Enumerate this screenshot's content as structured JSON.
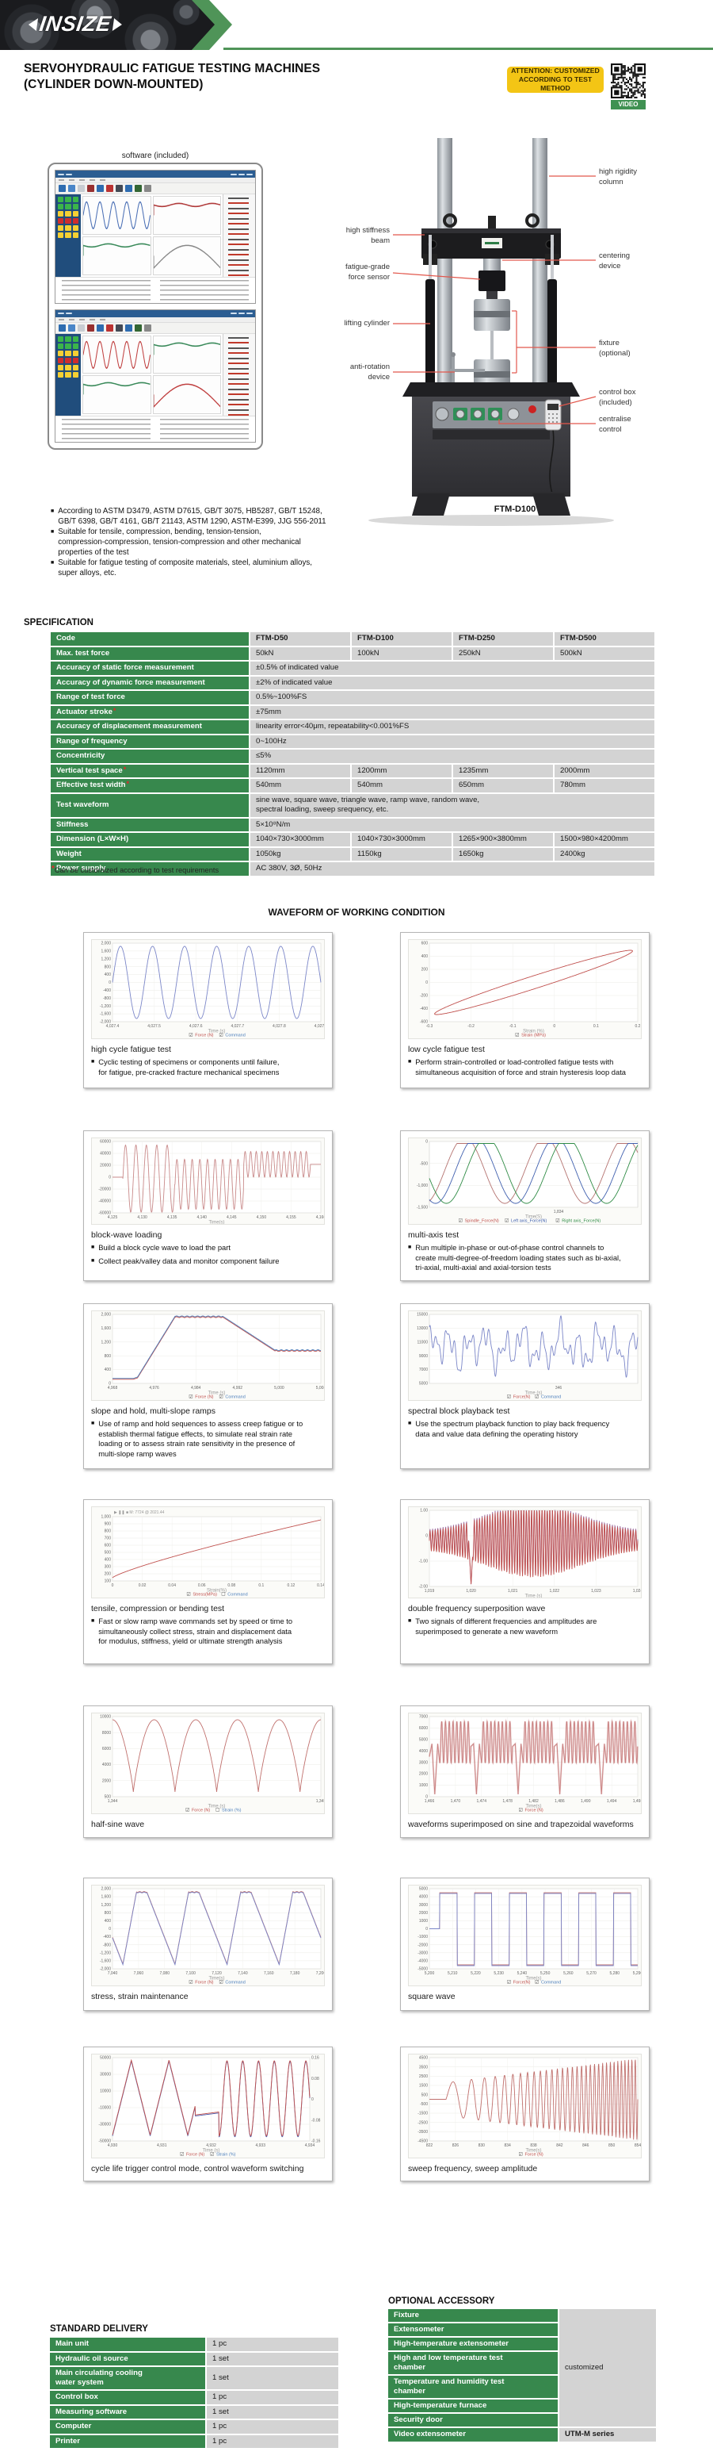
{
  "header": {
    "brand": "INSIZE",
    "title_line1": "SERVOHYDRAULIC FATIGUE TESTING MACHINES",
    "title_line2": "(CYLINDER DOWN-MOUNTED)",
    "badge_line1": "ATTENTION: CUSTOMIZED",
    "badge_line2": "ACCORDING TO TEST METHOD",
    "video_label": "VIDEO"
  },
  "software": {
    "caption": "software (included)"
  },
  "machine": {
    "model": "FTM-D100",
    "callouts": [
      {
        "name": "high-rigidity-column",
        "side": "right",
        "text": "high rigidity\ncolumn"
      },
      {
        "name": "high-stiffness-beam",
        "side": "left",
        "text": "high stiffness\nbeam"
      },
      {
        "name": "centering-device",
        "side": "right",
        "text": "centering\ndevice"
      },
      {
        "name": "fatigue-grade-force-sensor",
        "side": "left",
        "text": "fatigue-grade\nforce sensor"
      },
      {
        "name": "lifting-cylinder",
        "side": "left",
        "text": "lifting cylinder"
      },
      {
        "name": "fixture-optional",
        "side": "right",
        "text": "fixture\n(optional)"
      },
      {
        "name": "anti-rotation-device",
        "side": "left",
        "text": "anti-rotation\ndevice"
      },
      {
        "name": "control-box-included",
        "side": "right",
        "text": "control box\n(included)"
      },
      {
        "name": "centralise-control",
        "side": "right",
        "text": "centralise\ncontrol"
      }
    ]
  },
  "features": [
    "According to ASTM D3479, ASTM D7615, GB/T 3075, HB5287, GB/T 15248,\nGB/T 6398, GB/T 4161, GB/T 21143, ASTM 1290, ASTM-E399, JJG 556-2011",
    "Suitable for tensile, compression, bending, tension-tension,\ncompression-compression, tension-compression and other mechanical\nproperties of the test",
    "Suitable for fatigue testing of composite materials, steel, aluminium alloys,\nsuper alloys, etc."
  ],
  "specification": {
    "heading": "SPECIFICATION",
    "rows": [
      {
        "label": "Code",
        "values": [
          "FTM-D50",
          "FTM-D100",
          "FTM-D250",
          "FTM-D500"
        ],
        "bold": true
      },
      {
        "label": "Max. test force",
        "values": [
          "50kN",
          "100kN",
          "250kN",
          "500kN"
        ]
      },
      {
        "label": "Accuracy of static force measurement",
        "span": "±0.5% of indicated value"
      },
      {
        "label": "Accuracy of dynamic force measurement",
        "span": "±2% of indicated value"
      },
      {
        "label": "Range of test force",
        "span": "0.5%~100%FS"
      },
      {
        "label": "Actuator stroke",
        "star": true,
        "span": "±75mm"
      },
      {
        "label": "Accuracy of displacement measurement",
        "span": "linearity error<40μm, repeatability<0.001%FS"
      },
      {
        "label": "Range of frequency",
        "span": "0~100Hz"
      },
      {
        "label": "Concentricity",
        "span": "≤5%"
      },
      {
        "label": "Vertical test space",
        "star": true,
        "values": [
          "1120mm",
          "1200mm",
          "1235mm",
          "2000mm"
        ]
      },
      {
        "label": "Effective test width",
        "star": true,
        "values": [
          "540mm",
          "540mm",
          "650mm",
          "780mm"
        ]
      },
      {
        "label": "Test waveform",
        "span": "sine wave, square wave, triangle wave, ramp wave, random wave,\nspectral loading, sweep srequency, etc."
      },
      {
        "label": "Stiffness",
        "span": "5×10⁸N/m"
      },
      {
        "label": "Dimension (L×W×H)",
        "values": [
          "1040×730×3000mm",
          "1040×730×3000mm",
          "1265×900×3800mm",
          "1500×980×4200mm"
        ]
      },
      {
        "label": "Weight",
        "values": [
          "1050kg",
          "1150kg",
          "1650kg",
          "2400kg"
        ]
      },
      {
        "label": "Power supply",
        "span": "AC 380V, 3Ø, 50Hz"
      }
    ],
    "footnote_mark": "*",
    "footnote": "Can be customized according to test requirements"
  },
  "waveform_section": {
    "heading": "WAVEFORM OF WORKING CONDITION",
    "cards": [
      {
        "id": "high-cycle",
        "caption": "high cycle fatigue test",
        "bullets": [
          "Cyclic testing of specimens or components until failure,\nfor fatigue, pre-cracked fracture mechanical specimens"
        ],
        "chart": {
          "type": "sine",
          "cycles": 6.5,
          "colors": [
            "#7b86c8"
          ],
          "yticks": [
            "2,000",
            "1,600",
            "1,200",
            "800",
            "400",
            "0",
            "-400",
            "-800",
            "-1,200",
            "-1,600",
            "-2,000"
          ],
          "xticks": [
            "4,027.4",
            "4,027.5",
            "4,027.6",
            "4,027.7",
            "4,027.8",
            "4,027.9"
          ],
          "xlabel": "Time (s)",
          "legend": [
            {
              "label": "Force (N)",
              "color": "#c0504d",
              "checked": true
            },
            {
              "label": "Command",
              "color": "#4f81bd",
              "checked": true
            }
          ]
        }
      },
      {
        "id": "low-cycle",
        "caption": "low cycle fatigue test",
        "bullets": [
          "Perform strain-controlled or load-controlled fatigue tests with\nsimultaneous acquisition of force and strain hysteresis loop data"
        ],
        "chart": {
          "type": "hysteresis",
          "colors": [
            "#c0504d"
          ],
          "yticks": [
            "600",
            "400",
            "200",
            "0",
            "-200",
            "-400",
            "-600"
          ],
          "xticks": [
            "-0.3",
            "-0.2",
            "-0.1",
            "0",
            "0.1",
            "0.2"
          ],
          "xlabel": "Strain (%)",
          "legend": [
            {
              "label": "Strain (MPa)",
              "color": "#c0504d",
              "checked": true
            }
          ]
        }
      },
      {
        "id": "block-wave",
        "caption": "block-wave loading",
        "bullets": [
          "Build a block cycle wave to load the part",
          "Collect peak/valley data and monitor component failure"
        ],
        "chart": {
          "type": "blocks",
          "colors": [
            "#c98a8a"
          ],
          "yticks": [
            "60000",
            "40000",
            "20000",
            "0",
            "-20000",
            "-40000",
            "-60000"
          ],
          "xticks": [
            "4,125",
            "4,130",
            "4,135",
            "4,140",
            "4,145",
            "4,150",
            "4,155",
            "4,160"
          ],
          "xlabel": "Time(s)",
          "legend": []
        }
      },
      {
        "id": "multi-axis",
        "caption": "multi-axis test",
        "bullets": [
          "Run multiple in-phase or out-of-phase control channels to\ncreate multi-degree-of-freedom loading states such as bi-axial,\ntri-axial, multi-axial and axial-torsion tests"
        ],
        "chart": {
          "type": "multisine",
          "cycles": 2.6,
          "colors": [
            "#b4726f",
            "#3f5fae",
            "#2e8b44"
          ],
          "yticks": [
            "0",
            "-500",
            "-1,000",
            "-1,500"
          ],
          "xticks": [
            "1,834"
          ],
          "xlabel": "Time(S)",
          "legend": [
            {
              "label": "Spindle_Force(N)",
              "color": "#c0504d",
              "checked": true
            },
            {
              "label": "Left axis_Force(N)",
              "color": "#3f5fae",
              "checked": true
            },
            {
              "label": "Right axis_Force(N)",
              "color": "#2e8b44",
              "checked": true
            }
          ]
        }
      },
      {
        "id": "slope-hold",
        "caption": "slope and hold, multi-slope ramps",
        "bullets": [
          "Use of ramp and hold sequences to assess creep fatigue or to\nestablish thermal fatigue effects, to simulate real strain rate\nloading or to assess strain rate sensitivity in the presence of\nmulti-slope ramp waves"
        ],
        "chart": {
          "type": "ramphold",
          "colors": [
            "#c0504d",
            "#4f81bd"
          ],
          "yticks": [
            "2,000",
            "1,600",
            "1,200",
            "800",
            "400",
            "0"
          ],
          "xticks": [
            "4,968",
            "4,976",
            "4,984",
            "4,992",
            "5,000",
            "5,008"
          ],
          "xlabel": "Time (s)",
          "legend": [
            {
              "label": "Force (N)",
              "color": "#c0504d",
              "checked": true
            },
            {
              "label": "Command",
              "color": "#4f81bd",
              "checked": true
            }
          ]
        }
      },
      {
        "id": "spectral-playback",
        "caption": "spectral block playback test",
        "bullets": [
          "Use the spectrum playback function to play back frequency\ndata and value data defining the operating history"
        ],
        "chart": {
          "type": "noise",
          "colors": [
            "#7b86c8"
          ],
          "yticks": [
            "15000",
            "13000",
            "11000",
            "9000",
            "7000",
            "5000"
          ],
          "xticks": [
            "346"
          ],
          "xlabel": "Time (s)",
          "legend": [
            {
              "label": "Force(N)",
              "color": "#c0504d",
              "checked": true
            },
            {
              "label": "Command",
              "color": "#4f81bd",
              "checked": true
            }
          ]
        }
      },
      {
        "id": "tensile-ramp",
        "caption": "tensile, compression or bending test",
        "bullets": [
          "Fast or slow ramp wave commands set by speed or time to\nsimultaneously collect stress, strain and displacement data\nfor modulus, stiffness, yield or ultimate strength analysis"
        ],
        "chart": {
          "type": "ramp",
          "toolbar": "▶ ❚❚ ■   M: 7724 @ 2021.44",
          "colors": [
            "#c0504d"
          ],
          "yticks": [
            "1,000",
            "900",
            "800",
            "700",
            "600",
            "500",
            "400",
            "300",
            "200",
            "100"
          ],
          "xticks": [
            "0",
            "0.02",
            "0.04",
            "0.06",
            "0.08",
            "0.1",
            "0.12",
            "0.14"
          ],
          "xlabel": "Strain(%)",
          "legend": [
            {
              "label": "Stress(MPa)",
              "color": "#c0504d",
              "checked": true
            },
            {
              "label": "Command",
              "color": "#4f81bd",
              "checked": false
            }
          ]
        }
      },
      {
        "id": "double-frequency",
        "caption": "double frequency superposition wave",
        "bullets": [
          "Two signals of different frequencies and amplitudes are\nsuperimposed to generate a new waveform"
        ],
        "chart": {
          "type": "burst",
          "colors": [
            "#9b6a9e",
            "#c0504d"
          ],
          "yticks": [
            "1.00",
            "0",
            "-1.00",
            "-2.00"
          ],
          "xticks": [
            "1,019",
            "1,020",
            "1,021",
            "1,022",
            "1,023",
            "1,024"
          ],
          "xlabel": "Time (s)",
          "legend": []
        }
      },
      {
        "id": "half-sine",
        "caption": "half-sine wave",
        "bullets": [],
        "chart": {
          "type": "halfsine",
          "humps": 5,
          "colors": [
            "#c0706d"
          ],
          "yticks": [
            "10000",
            "8000",
            "6000",
            "4000",
            "2000",
            "500"
          ],
          "xticks": [
            "1,344",
            "1,345"
          ],
          "xlabel": "Time (s)",
          "legend": [
            {
              "label": "Force (N)",
              "color": "#c0504d",
              "checked": true
            },
            {
              "label": "Strain (%)",
              "color": "#4f81bd",
              "checked": false
            }
          ]
        }
      },
      {
        "id": "superimposed",
        "caption": "waveforms superimposed on sine and trapezoidal waveforms",
        "bullets": [],
        "chart": {
          "type": "packets",
          "colors": [
            "#c97f7f"
          ],
          "yticks": [
            "7000",
            "6000",
            "5000",
            "4000",
            "3000",
            "2000",
            "1000",
            "0"
          ],
          "xticks": [
            "1,466",
            "1,470",
            "1,474",
            "1,478",
            "1,482",
            "1,486",
            "1,490",
            "1,494",
            "1,498"
          ],
          "xlabel": "Time(s)",
          "legend": [
            {
              "label": "Force (N)",
              "color": "#c0504d",
              "checked": true
            }
          ]
        }
      },
      {
        "id": "stress-strain",
        "caption": "stress, strain maintenance",
        "bullets": [],
        "chart": {
          "type": "trapezoid",
          "cycles": 4,
          "colors": [
            "#c0706d",
            "#7b86c8"
          ],
          "yticks": [
            "2,000",
            "1,600",
            "1,200",
            "800",
            "400",
            "0",
            "-400",
            "-800",
            "-1,200",
            "-1,600",
            "-2,000"
          ],
          "xticks": [
            "7,040",
            "7,060",
            "7,080",
            "7,100",
            "7,120",
            "7,140",
            "7,160",
            "7,180",
            "7,200"
          ],
          "xlabel": "Time(s)",
          "legend": [
            {
              "label": "Force (N)",
              "color": "#c0504d",
              "checked": true
            },
            {
              "label": "Command",
              "color": "#4f81bd",
              "checked": true
            }
          ]
        }
      },
      {
        "id": "square-wave",
        "caption": "square wave",
        "bullets": [],
        "chart": {
          "type": "square",
          "cycles": 6,
          "colors": [
            "#c0706d",
            "#7b86c8"
          ],
          "yticks": [
            "5000",
            "4000",
            "3000",
            "2000",
            "1000",
            "0",
            "-1000",
            "-2000",
            "-3000",
            "-4000",
            "-5000"
          ],
          "xticks": [
            "5,200",
            "5,210",
            "5,220",
            "5,230",
            "5,240",
            "5,250",
            "5,260",
            "5,270",
            "5,280",
            "5,290"
          ],
          "xlabel": "Time(s)",
          "legend": [
            {
              "label": "Force(N)",
              "color": "#c0504d",
              "checked": true
            },
            {
              "label": "Command",
              "color": "#4f81bd",
              "checked": true
            }
          ]
        }
      },
      {
        "id": "cycle-trigger",
        "caption": "cycle life trigger control mode, control waveform switching",
        "bullets": [],
        "chart": {
          "type": "trisine",
          "colors": [
            "#4f5fae",
            "#c0504d"
          ],
          "yticks": [
            "50000",
            "30000",
            "10000",
            "-10000",
            "-30000",
            "-50000"
          ],
          "right_yticks": [
            "0.16",
            "0.08",
            "0",
            "-0.08",
            "-0.16"
          ],
          "xticks": [
            "4,930",
            "4,931",
            "4,932",
            "4,933",
            "4,934"
          ],
          "xlabel": "Time (s)",
          "legend": [
            {
              "label": "Force (N)",
              "color": "#c0504d",
              "checked": true
            },
            {
              "label": "Strain (%)",
              "color": "#4f81bd",
              "checked": true
            }
          ]
        }
      },
      {
        "id": "sweep",
        "caption": "sweep frequency, sweep amplitude",
        "bullets": [],
        "chart": {
          "type": "sweep",
          "colors": [
            "#c0706d"
          ],
          "yticks": [
            "4500",
            "3500",
            "2500",
            "1500",
            "500",
            "-500",
            "-1500",
            "-2500",
            "-3500",
            "-4500"
          ],
          "xticks": [
            "822",
            "826",
            "830",
            "834",
            "838",
            "842",
            "846",
            "850",
            "854"
          ],
          "xlabel": "Time(s)",
          "legend": [
            {
              "label": "Force (N)",
              "color": "#c0504d",
              "checked": true
            }
          ]
        }
      }
    ]
  },
  "standard_delivery": {
    "heading": "STANDARD DELIVERY",
    "rows": [
      [
        "Main unit",
        "1 pc"
      ],
      [
        "Hydraulic oil source",
        "1 set"
      ],
      [
        "Main circulating cooling\nwater system",
        "1 set"
      ],
      [
        "Control box",
        "1 pc"
      ],
      [
        "Measuring software",
        "1 set"
      ],
      [
        "Computer",
        "1 pc"
      ],
      [
        "Printer",
        "1 pc"
      ]
    ]
  },
  "optional_accessory": {
    "heading": "OPTIONAL ACCESSORY",
    "merged_rows": [
      "Fixture",
      "Extensometer",
      "High-temperature extensometer",
      "High and low temperature test\nchamber",
      "Temperature and humidity test\nchamber",
      "High-temperature furnace",
      "Security door"
    ],
    "merged_value": "customized",
    "last_row": [
      "Video extensometer",
      "UTM-M series"
    ]
  }
}
